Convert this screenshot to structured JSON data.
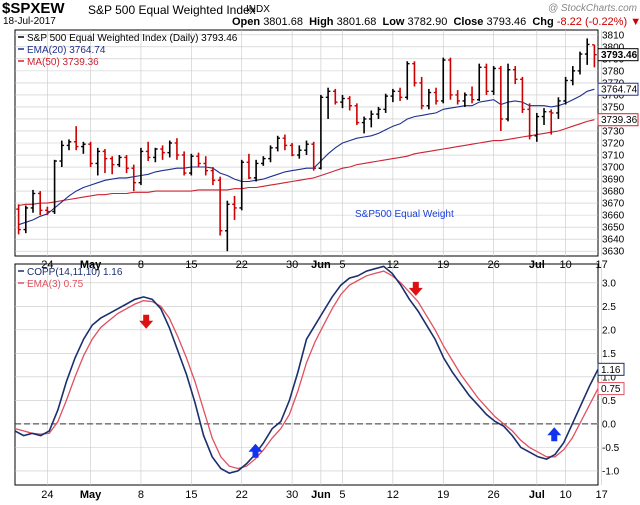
{
  "header": {
    "symbol": "$SPXEW",
    "name": "S&P 500 Equal Weighted Index",
    "exchange": "INDX",
    "date": "18-Jul-2017",
    "open_label": "Open",
    "open": "3801.68",
    "high_label": "High",
    "high": "3801.68",
    "low_label": "Low",
    "low": "3782.90",
    "close_label": "Close",
    "close": "3793.46",
    "chg_label": "Chg",
    "chg": "-8.22 (-0.22%)",
    "brand": "@ StockCharts.com"
  },
  "colors": {
    "up": "#000000",
    "down": "#cc0000",
    "ema": "#1f2f8f",
    "ma": "#cc2233",
    "copp": "#1a2f6e",
    "copp_ema": "#e05060",
    "arrow_down": "#dd1111",
    "arrow_up": "#1133ee",
    "grid": "#c8c8c8"
  },
  "chart_data": [
    {
      "type": "candlestick",
      "legend": [
        {
          "text": "S&P 500 Equal Weighted Index (Daily) 3793.46",
          "color": "#000000"
        },
        {
          "text": "EMA(20) 3764.74",
          "color": "#1f2f8f"
        },
        {
          "text": "MA(50) 3739.36",
          "color": "#cc2233"
        }
      ],
      "annotation": "S&P500 Equal Weight",
      "y_ticks": [
        3630,
        3640,
        3650,
        3660,
        3670,
        3680,
        3690,
        3700,
        3710,
        3720,
        3730,
        3740,
        3750,
        3760,
        3770,
        3780,
        3790,
        3800,
        3810
      ],
      "ylim": [
        3626,
        3814
      ],
      "badges": [
        {
          "label": "3793.46",
          "value": 3793.46,
          "color": "#000000",
          "bold": true
        },
        {
          "label": "3764.74",
          "value": 3764.74,
          "color": "#1f2f8f",
          "bold": false
        },
        {
          "label": "3739.36",
          "value": 3739.36,
          "color": "#cc2233",
          "bold": false
        }
      ],
      "candles": [
        [
          3665,
          3669,
          3644,
          3648
        ],
        [
          3648,
          3668,
          3645,
          3666
        ],
        [
          3666,
          3681,
          3662,
          3678
        ],
        [
          3678,
          3680,
          3660,
          3664
        ],
        [
          3664,
          3667,
          3660,
          3663
        ],
        [
          3663,
          3706,
          3661,
          3705
        ],
        [
          3705,
          3722,
          3700,
          3718
        ],
        [
          3718,
          3723,
          3714,
          3721
        ],
        [
          3721,
          3734,
          3714,
          3717
        ],
        [
          3717,
          3721,
          3711,
          3719
        ],
        [
          3719,
          3721,
          3700,
          3703
        ],
        [
          3703,
          3716,
          3693,
          3713
        ],
        [
          3713,
          3715,
          3695,
          3707
        ],
        [
          3707,
          3709,
          3694,
          3702
        ],
        [
          3702,
          3710,
          3700,
          3708
        ],
        [
          3708,
          3710,
          3695,
          3699
        ],
        [
          3699,
          3702,
          3680,
          3687
        ],
        [
          3687,
          3716,
          3685,
          3713
        ],
        [
          3713,
          3721,
          3705,
          3708
        ],
        [
          3708,
          3716,
          3704,
          3715
        ],
        [
          3715,
          3718,
          3706,
          3712
        ],
        [
          3712,
          3722,
          3708,
          3720
        ],
        [
          3720,
          3724,
          3706,
          3710
        ],
        [
          3710,
          3713,
          3693,
          3695
        ],
        [
          3695,
          3711,
          3693,
          3709
        ],
        [
          3709,
          3712,
          3700,
          3703
        ],
        [
          3703,
          3709,
          3693,
          3697
        ],
        [
          3697,
          3700,
          3685,
          3689
        ],
        [
          3689,
          3692,
          3643,
          3647
        ],
        [
          3647,
          3672,
          3630,
          3669
        ],
        [
          3669,
          3676,
          3656,
          3666
        ],
        [
          3666,
          3706,
          3664,
          3704
        ],
        [
          3704,
          3711,
          3690,
          3691
        ],
        [
          3691,
          3706,
          3688,
          3703
        ],
        [
          3703,
          3709,
          3701,
          3707
        ],
        [
          3707,
          3718,
          3704,
          3716
        ],
        [
          3716,
          3726,
          3713,
          3724
        ],
        [
          3724,
          3727,
          3714,
          3718
        ],
        [
          3718,
          3720,
          3709,
          3710
        ],
        [
          3710,
          3718,
          3707,
          3714
        ],
        [
          3714,
          3722,
          3710,
          3719
        ],
        [
          3719,
          3721,
          3697,
          3699
        ],
        [
          3699,
          3760,
          3698,
          3758
        ],
        [
          3758,
          3766,
          3740,
          3763
        ],
        [
          3763,
          3765,
          3752,
          3754
        ],
        [
          3754,
          3760,
          3749,
          3757
        ],
        [
          3757,
          3759,
          3747,
          3751
        ],
        [
          3751,
          3753,
          3735,
          3737
        ],
        [
          3737,
          3742,
          3728,
          3740
        ],
        [
          3740,
          3747,
          3733,
          3744
        ],
        [
          3744,
          3750,
          3740,
          3748
        ],
        [
          3748,
          3761,
          3745,
          3759
        ],
        [
          3759,
          3765,
          3754,
          3763
        ],
        [
          3763,
          3766,
          3755,
          3758
        ],
        [
          3758,
          3788,
          3756,
          3786
        ],
        [
          3786,
          3788,
          3767,
          3770
        ],
        [
          3770,
          3775,
          3748,
          3751
        ],
        [
          3751,
          3765,
          3748,
          3762
        ],
        [
          3762,
          3766,
          3752,
          3755
        ],
        [
          3755,
          3791,
          3753,
          3789
        ],
        [
          3789,
          3791,
          3756,
          3760
        ],
        [
          3760,
          3764,
          3752,
          3755
        ],
        [
          3755,
          3762,
          3750,
          3760
        ],
        [
          3760,
          3767,
          3753,
          3756
        ],
        [
          3756,
          3786,
          3755,
          3783
        ],
        [
          3783,
          3786,
          3760,
          3763
        ],
        [
          3763,
          3784,
          3760,
          3782
        ],
        [
          3782,
          3784,
          3730,
          3740
        ],
        [
          3740,
          3786,
          3738,
          3781
        ],
        [
          3781,
          3784,
          3769,
          3773
        ],
        [
          3773,
          3775,
          3745,
          3748
        ],
        [
          3748,
          3753,
          3723,
          3726
        ],
        [
          3726,
          3745,
          3721,
          3742
        ],
        [
          3742,
          3749,
          3735,
          3746
        ],
        [
          3746,
          3748,
          3727,
          3745
        ],
        [
          3745,
          3758,
          3740,
          3755
        ],
        [
          3755,
          3775,
          3752,
          3772
        ],
        [
          3772,
          3784,
          3768,
          3780
        ],
        [
          3780,
          3796,
          3777,
          3794
        ],
        [
          3794,
          3807,
          3785,
          3802
        ],
        [
          3801.68,
          3801.68,
          3782.9,
          3793.46
        ]
      ],
      "ema20": [
        3652,
        3654,
        3656,
        3659,
        3661,
        3666,
        3671,
        3676,
        3680,
        3683,
        3685,
        3687,
        3689,
        3690,
        3691,
        3691,
        3692,
        3693,
        3694,
        3696,
        3697,
        3698,
        3699,
        3699,
        3700,
        3700,
        3700,
        3699,
        3695,
        3693,
        3690,
        3688,
        3688,
        3689,
        3690,
        3692,
        3694,
        3696,
        3697,
        3698,
        3699,
        3699,
        3705,
        3711,
        3716,
        3720,
        3722,
        3724,
        3725,
        3726,
        3728,
        3731,
        3734,
        3736,
        3740,
        3742,
        3743,
        3744,
        3745,
        3748,
        3749,
        3750,
        3751,
        3751,
        3754,
        3755,
        3756,
        3752,
        3754,
        3755,
        3754,
        3751,
        3751,
        3751,
        3750,
        3751,
        3753,
        3756,
        3759,
        3763,
        3764.74
      ],
      "ma50": [
        3668,
        3669,
        3669,
        3670,
        3670,
        3671,
        3672,
        3673,
        3674,
        3675,
        3676,
        3677,
        3677,
        3678,
        3678,
        3678,
        3679,
        3679,
        3679,
        3680,
        3680,
        3680,
        3680,
        3680,
        3680,
        3681,
        3681,
        3681,
        3681,
        3681,
        3682,
        3682,
        3683,
        3683,
        3684,
        3685,
        3686,
        3687,
        3688,
        3689,
        3690,
        3691,
        3693,
        3695,
        3697,
        3699,
        3700,
        3702,
        3703,
        3704,
        3705,
        3706,
        3707,
        3708,
        3709,
        3711,
        3712,
        3713,
        3714,
        3715,
        3716,
        3717,
        3718,
        3719,
        3720,
        3721,
        3722,
        3722,
        3723,
        3724,
        3725,
        3726,
        3727,
        3728,
        3729,
        3730,
        3732,
        3734,
        3736,
        3738,
        3739.36
      ]
    },
    {
      "type": "line",
      "legend": [
        {
          "text": "COPP(14,11,10) 1.16",
          "color": "#1a2f6e"
        },
        {
          "text": "EMA(3) 0.75",
          "color": "#e05060"
        }
      ],
      "y_ticks": [
        -1.0,
        -0.5,
        0.0,
        0.5,
        1.0,
        1.5,
        2.0,
        2.5,
        3.0
      ],
      "ylim": [
        -1.3,
        3.4
      ],
      "badges": [
        {
          "label": "1.16",
          "value": 1.16,
          "color": "#1a2f6e"
        },
        {
          "label": "0.75",
          "value": 0.75,
          "color": "#e05060"
        }
      ],
      "series": [
        {
          "values": [
            -0.15,
            -0.25,
            -0.2,
            -0.25,
            -0.15,
            0.3,
            0.9,
            1.4,
            1.8,
            2.1,
            2.25,
            2.35,
            2.45,
            2.55,
            2.65,
            2.7,
            2.65,
            2.45,
            2.05,
            1.55,
            1.05,
            0.45,
            -0.25,
            -0.7,
            -0.95,
            -1.05,
            -1.0,
            -0.85,
            -0.65,
            -0.4,
            -0.1,
            0.05,
            0.5,
            1.1,
            1.8,
            2.1,
            2.4,
            2.7,
            2.95,
            3.1,
            3.15,
            3.25,
            3.3,
            3.35,
            3.2,
            2.95,
            2.65,
            2.4,
            2.1,
            1.8,
            1.4,
            1.1,
            0.85,
            0.6,
            0.4,
            0.2,
            0.05,
            -0.05,
            -0.25,
            -0.5,
            -0.6,
            -0.7,
            -0.75,
            -0.65,
            -0.4,
            0.0,
            0.4,
            0.8,
            1.16
          ]
        },
        {
          "values": [
            -0.1,
            -0.15,
            -0.2,
            -0.22,
            -0.2,
            0.05,
            0.5,
            1.0,
            1.45,
            1.8,
            2.05,
            2.2,
            2.35,
            2.45,
            2.55,
            2.62,
            2.6,
            2.5,
            2.25,
            1.85,
            1.4,
            0.9,
            0.3,
            -0.3,
            -0.7,
            -0.9,
            -0.95,
            -0.9,
            -0.75,
            -0.55,
            -0.3,
            -0.1,
            0.2,
            0.7,
            1.3,
            1.75,
            2.1,
            2.45,
            2.75,
            2.95,
            3.05,
            3.15,
            3.2,
            3.25,
            3.15,
            3.0,
            2.8,
            2.6,
            2.3,
            2.0,
            1.65,
            1.35,
            1.05,
            0.8,
            0.55,
            0.35,
            0.15,
            0.0,
            -0.15,
            -0.35,
            -0.5,
            -0.6,
            -0.7,
            -0.7,
            -0.55,
            -0.3,
            0.05,
            0.4,
            0.75
          ]
        }
      ],
      "zero_line": 0.0,
      "arrows": [
        {
          "direction": "down",
          "index": 18,
          "value": 2.15
        },
        {
          "direction": "up",
          "index": 33,
          "value": -0.55
        },
        {
          "direction": "down",
          "index": 55,
          "value": 2.85
        },
        {
          "direction": "up",
          "index": 74,
          "value": -0.2
        }
      ]
    }
  ],
  "x_axis": {
    "ticks": [
      {
        "label": "24",
        "index": 4,
        "bold": false
      },
      {
        "label": "May",
        "index": 10,
        "bold": true
      },
      {
        "label": "8",
        "index": 17,
        "bold": false
      },
      {
        "label": "15",
        "index": 24,
        "bold": false
      },
      {
        "label": "22",
        "index": 31,
        "bold": false
      },
      {
        "label": "30",
        "index": 38,
        "bold": false
      },
      {
        "label": "Jun",
        "index": 42,
        "bold": true
      },
      {
        "label": "5",
        "index": 45,
        "bold": false
      },
      {
        "label": "12",
        "index": 52,
        "bold": false
      },
      {
        "label": "19",
        "index": 59,
        "bold": false
      },
      {
        "label": "26",
        "index": 66,
        "bold": false
      },
      {
        "label": "Jul",
        "index": 72,
        "bold": true
      },
      {
        "label": "10",
        "index": 76,
        "bold": false
      },
      {
        "label": "17",
        "index": 81,
        "bold": false
      }
    ]
  }
}
